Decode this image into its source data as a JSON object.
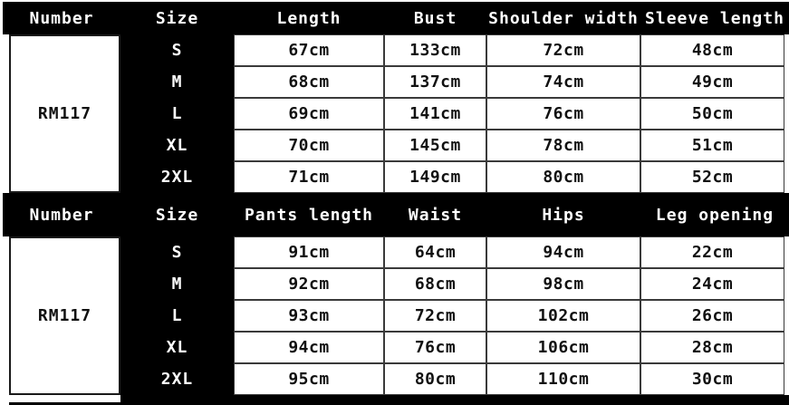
{
  "colors": {
    "header_bg": "#000000",
    "header_text": "#ffffff",
    "cell_bg": "#ffffff",
    "cell_text": "#111111",
    "grid_line": "#3a3a3a",
    "size_column_bg": "#000000",
    "size_column_text": "#ffffff"
  },
  "chart_data": [
    {
      "type": "table",
      "columns": [
        "Number",
        "Size",
        "Length",
        "Bust",
        "Shoulder width",
        "Sleeve length"
      ],
      "number": "RM117",
      "rows": [
        {
          "size": "S",
          "cells": [
            "67cm",
            "133cm",
            "72cm",
            "48cm"
          ]
        },
        {
          "size": "M",
          "cells": [
            "68cm",
            "137cm",
            "74cm",
            "49cm"
          ]
        },
        {
          "size": "L",
          "cells": [
            "69cm",
            "141cm",
            "76cm",
            "50cm"
          ]
        },
        {
          "size": "XL",
          "cells": [
            "70cm",
            "145cm",
            "78cm",
            "51cm"
          ]
        },
        {
          "size": "2XL",
          "cells": [
            "71cm",
            "149cm",
            "80cm",
            "52cm"
          ]
        }
      ]
    },
    {
      "type": "table",
      "columns": [
        "Number",
        "Size",
        "Pants length",
        "Waist",
        "Hips",
        "Leg opening"
      ],
      "number": "RM117",
      "rows": [
        {
          "size": "S",
          "cells": [
            "91cm",
            "64cm",
            "94cm",
            "22cm"
          ]
        },
        {
          "size": "M",
          "cells": [
            "92cm",
            "68cm",
            "98cm",
            "24cm"
          ]
        },
        {
          "size": "L",
          "cells": [
            "93cm",
            "72cm",
            "102cm",
            "26cm"
          ]
        },
        {
          "size": "XL",
          "cells": [
            "94cm",
            "76cm",
            "106cm",
            "28cm"
          ]
        },
        {
          "size": "2XL",
          "cells": [
            "95cm",
            "80cm",
            "110cm",
            "30cm"
          ]
        }
      ]
    }
  ]
}
